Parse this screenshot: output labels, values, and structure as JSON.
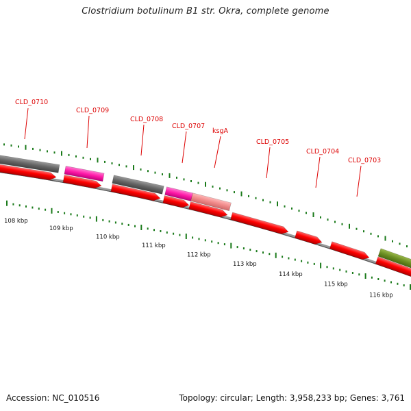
{
  "title": "Clostridium botulinum B1 str. Okra, complete genome",
  "footer": {
    "accession": "Accession: NC_010516",
    "summary": "Topology: circular; Length: 3,958,233 bp; Genes: 3,761"
  },
  "colors": {
    "cds": "#ff0000",
    "gene_gray": "#666666",
    "gene_magenta": "#ff1aa8",
    "gene_pink": "#f08a8a",
    "gene_olive": "#6b8e23",
    "ticks": "#1a7a1a",
    "labels": "#dd0000",
    "backbone": "#777777"
  },
  "gene_labels": [
    "CLD_0710",
    "CLD_0709",
    "CLD_0708",
    "CLD_0707",
    "ksgA",
    "CLD_0705",
    "CLD_0704",
    "CLD_0703"
  ],
  "scale_labels": [
    "108 kbp",
    "109 kbp",
    "110 kbp",
    "111 kbp",
    "112 kbp",
    "113 kbp",
    "114 kbp",
    "115 kbp",
    "116 kbp"
  ]
}
